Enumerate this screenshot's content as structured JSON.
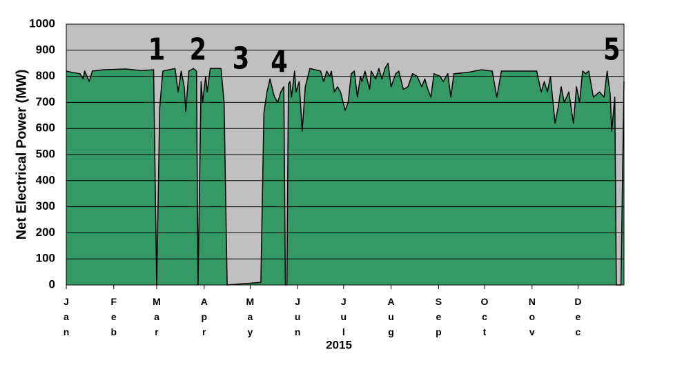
{
  "chart_data": {
    "type": "area",
    "y_label": "Net Electrical Power (MW)",
    "x_label": "2015",
    "color": "#359966",
    "plot_background": "#c0c0c0",
    "grid": true,
    "xlim": [
      1,
      365
    ],
    "ylim": [
      0,
      1000
    ],
    "yticks": [
      0,
      100,
      200,
      300,
      400,
      500,
      600,
      700,
      800,
      900,
      1000
    ],
    "xticks": [
      {
        "value": 1,
        "label": "Jan"
      },
      {
        "value": 32,
        "label": "Feb"
      },
      {
        "value": 60,
        "label": "Mar"
      },
      {
        "value": 91,
        "label": "Apr"
      },
      {
        "value": 121,
        "label": "May"
      },
      {
        "value": 152,
        "label": "Jun"
      },
      {
        "value": 182,
        "label": "Jul"
      },
      {
        "value": 213,
        "label": "Aug"
      },
      {
        "value": 244,
        "label": "Sep"
      },
      {
        "value": 274,
        "label": "Oct"
      },
      {
        "value": 305,
        "label": "Nov"
      },
      {
        "value": 335,
        "label": "Dec"
      }
    ],
    "x": [
      1,
      5,
      10,
      12,
      13,
      16,
      18,
      25,
      40,
      50,
      58,
      60,
      62,
      64,
      72,
      74,
      76,
      78,
      79,
      81,
      84,
      86,
      87,
      89,
      90,
      92,
      93,
      95,
      102,
      104,
      106,
      128,
      130,
      132,
      134,
      136,
      137,
      139,
      141,
      143,
      144,
      145,
      146,
      147,
      148,
      150,
      151,
      153,
      155,
      157,
      160,
      167,
      169,
      171,
      173,
      174,
      176,
      178,
      180,
      183,
      185,
      187,
      189,
      191,
      193,
      194,
      196,
      199,
      200,
      203,
      205,
      207,
      209,
      211,
      213,
      216,
      218,
      221,
      224,
      227,
      230,
      233,
      235,
      237,
      239,
      241,
      245,
      247,
      250,
      252,
      254,
      263,
      272,
      279,
      282,
      285,
      308,
      311,
      313,
      315,
      317,
      320,
      322,
      324,
      326,
      329,
      332,
      334,
      336,
      338,
      340,
      342,
      345,
      349,
      352,
      354,
      356,
      357,
      359,
      360,
      363,
      365
    ],
    "values": [
      820,
      815,
      810,
      790,
      820,
      780,
      820,
      825,
      828,
      822,
      825,
      0,
      680,
      820,
      830,
      740,
      820,
      760,
      665,
      820,
      830,
      820,
      0,
      780,
      700,
      800,
      740,
      830,
      830,
      700,
      0,
      10,
      660,
      740,
      790,
      740,
      720,
      700,
      740,
      760,
      0,
      0,
      770,
      780,
      720,
      820,
      740,
      780,
      590,
      760,
      830,
      820,
      780,
      820,
      800,
      820,
      740,
      760,
      740,
      670,
      700,
      810,
      820,
      720,
      800,
      780,
      820,
      750,
      820,
      790,
      830,
      790,
      830,
      850,
      760,
      810,
      820,
      750,
      760,
      810,
      800,
      760,
      790,
      750,
      720,
      810,
      800,
      780,
      810,
      720,
      810,
      815,
      825,
      820,
      720,
      820,
      820,
      740,
      780,
      740,
      800,
      620,
      680,
      760,
      700,
      740,
      620,
      760,
      700,
      820,
      810,
      820,
      720,
      740,
      720,
      820,
      730,
      590,
      720,
      0,
      0,
      780
    ],
    "annotations": [
      {
        "text": "1",
        "x": 60,
        "y": 894
      },
      {
        "text": "2",
        "x": 87,
        "y": 894
      },
      {
        "text": "3",
        "x": 115,
        "y": 860
      },
      {
        "text": "4",
        "x": 140,
        "y": 847
      },
      {
        "text": "5",
        "x": 357,
        "y": 894
      }
    ]
  }
}
